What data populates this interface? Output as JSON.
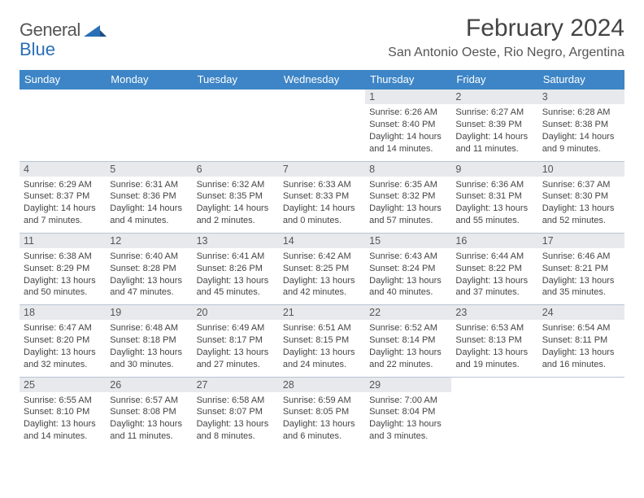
{
  "brand": {
    "name_part1": "General",
    "name_part2": "Blue"
  },
  "title": "February 2024",
  "location": "San Antonio Oeste, Rio Negro, Argentina",
  "style": {
    "header_bg": "#3d85c6",
    "header_fg": "#ffffff",
    "dayhead_bg": "#e7e9ec",
    "rule_color": "#b9c5d4",
    "text_color": "#444444",
    "title_fontsize_pt": 22,
    "location_fontsize_pt": 12,
    "dayhead_fontsize_pt": 9.5,
    "cell_fontsize_pt": 8.3
  },
  "weekdays": [
    "Sunday",
    "Monday",
    "Tuesday",
    "Wednesday",
    "Thursday",
    "Friday",
    "Saturday"
  ],
  "grid": [
    [
      null,
      null,
      null,
      null,
      {
        "d": "1",
        "sr": "6:26 AM",
        "ss": "8:40 PM",
        "dl": "14 hours and 14 minutes."
      },
      {
        "d": "2",
        "sr": "6:27 AM",
        "ss": "8:39 PM",
        "dl": "14 hours and 11 minutes."
      },
      {
        "d": "3",
        "sr": "6:28 AM",
        "ss": "8:38 PM",
        "dl": "14 hours and 9 minutes."
      }
    ],
    [
      {
        "d": "4",
        "sr": "6:29 AM",
        "ss": "8:37 PM",
        "dl": "14 hours and 7 minutes."
      },
      {
        "d": "5",
        "sr": "6:31 AM",
        "ss": "8:36 PM",
        "dl": "14 hours and 4 minutes."
      },
      {
        "d": "6",
        "sr": "6:32 AM",
        "ss": "8:35 PM",
        "dl": "14 hours and 2 minutes."
      },
      {
        "d": "7",
        "sr": "6:33 AM",
        "ss": "8:33 PM",
        "dl": "14 hours and 0 minutes."
      },
      {
        "d": "8",
        "sr": "6:35 AM",
        "ss": "8:32 PM",
        "dl": "13 hours and 57 minutes."
      },
      {
        "d": "9",
        "sr": "6:36 AM",
        "ss": "8:31 PM",
        "dl": "13 hours and 55 minutes."
      },
      {
        "d": "10",
        "sr": "6:37 AM",
        "ss": "8:30 PM",
        "dl": "13 hours and 52 minutes."
      }
    ],
    [
      {
        "d": "11",
        "sr": "6:38 AM",
        "ss": "8:29 PM",
        "dl": "13 hours and 50 minutes."
      },
      {
        "d": "12",
        "sr": "6:40 AM",
        "ss": "8:28 PM",
        "dl": "13 hours and 47 minutes."
      },
      {
        "d": "13",
        "sr": "6:41 AM",
        "ss": "8:26 PM",
        "dl": "13 hours and 45 minutes."
      },
      {
        "d": "14",
        "sr": "6:42 AM",
        "ss": "8:25 PM",
        "dl": "13 hours and 42 minutes."
      },
      {
        "d": "15",
        "sr": "6:43 AM",
        "ss": "8:24 PM",
        "dl": "13 hours and 40 minutes."
      },
      {
        "d": "16",
        "sr": "6:44 AM",
        "ss": "8:22 PM",
        "dl": "13 hours and 37 minutes."
      },
      {
        "d": "17",
        "sr": "6:46 AM",
        "ss": "8:21 PM",
        "dl": "13 hours and 35 minutes."
      }
    ],
    [
      {
        "d": "18",
        "sr": "6:47 AM",
        "ss": "8:20 PM",
        "dl": "13 hours and 32 minutes."
      },
      {
        "d": "19",
        "sr": "6:48 AM",
        "ss": "8:18 PM",
        "dl": "13 hours and 30 minutes."
      },
      {
        "d": "20",
        "sr": "6:49 AM",
        "ss": "8:17 PM",
        "dl": "13 hours and 27 minutes."
      },
      {
        "d": "21",
        "sr": "6:51 AM",
        "ss": "8:15 PM",
        "dl": "13 hours and 24 minutes."
      },
      {
        "d": "22",
        "sr": "6:52 AM",
        "ss": "8:14 PM",
        "dl": "13 hours and 22 minutes."
      },
      {
        "d": "23",
        "sr": "6:53 AM",
        "ss": "8:13 PM",
        "dl": "13 hours and 19 minutes."
      },
      {
        "d": "24",
        "sr": "6:54 AM",
        "ss": "8:11 PM",
        "dl": "13 hours and 16 minutes."
      }
    ],
    [
      {
        "d": "25",
        "sr": "6:55 AM",
        "ss": "8:10 PM",
        "dl": "13 hours and 14 minutes."
      },
      {
        "d": "26",
        "sr": "6:57 AM",
        "ss": "8:08 PM",
        "dl": "13 hours and 11 minutes."
      },
      {
        "d": "27",
        "sr": "6:58 AM",
        "ss": "8:07 PM",
        "dl": "13 hours and 8 minutes."
      },
      {
        "d": "28",
        "sr": "6:59 AM",
        "ss": "8:05 PM",
        "dl": "13 hours and 6 minutes."
      },
      {
        "d": "29",
        "sr": "7:00 AM",
        "ss": "8:04 PM",
        "dl": "13 hours and 3 minutes."
      },
      null,
      null
    ]
  ],
  "labels": {
    "sunrise": "Sunrise:",
    "sunset": "Sunset:",
    "daylight": "Daylight:"
  }
}
